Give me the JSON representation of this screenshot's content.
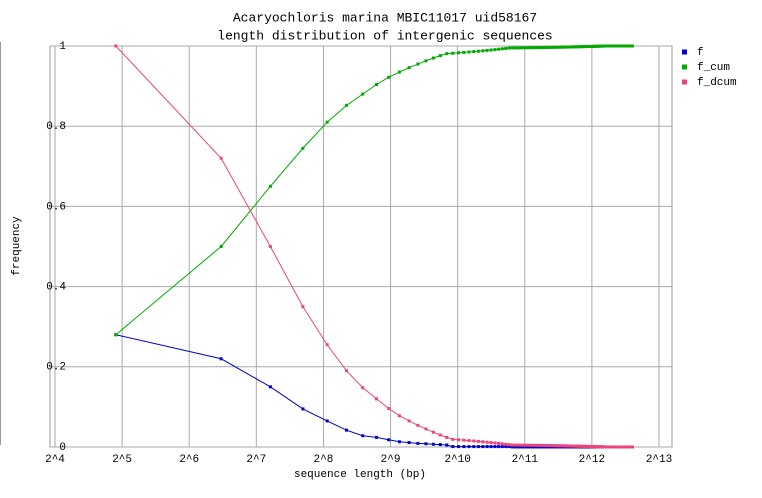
{
  "chart_data": {
    "type": "line",
    "title": "Acaryochloris marina MBIC11017 uid58167",
    "subtitle": "length distribution of intergenic sequences",
    "x_label": "sequence length (bp)",
    "y_label": "frequency",
    "xscale": "log2",
    "grid": true,
    "legend": "right",
    "xlim": [
      16,
      8192
    ],
    "ylim": [
      0,
      1
    ],
    "xticks": [
      {
        "value": 16,
        "label": "2^4"
      },
      {
        "value": 32,
        "label": "2^5"
      },
      {
        "value": 64,
        "label": "2^6"
      },
      {
        "value": 128,
        "label": "2^7"
      },
      {
        "value": 256,
        "label": "2^8"
      },
      {
        "value": 512,
        "label": "2^9"
      },
      {
        "value": 1024,
        "label": "2^10"
      },
      {
        "value": 2048,
        "label": "2^11"
      },
      {
        "value": 4096,
        "label": "2^12"
      },
      {
        "value": 8192,
        "label": "2^13"
      }
    ],
    "yticks": [
      0,
      0.2,
      0.4,
      0.6,
      0.8,
      1
    ],
    "x": [
      30,
      89,
      148,
      207,
      266,
      325,
      384,
      443,
      502,
      561,
      620,
      679,
      738,
      797,
      856,
      915,
      974,
      1033,
      1092,
      1151,
      1210,
      1269,
      1328,
      1387,
      1446,
      1505,
      1564,
      1623,
      1682,
      1741,
      1800,
      1859,
      1918,
      1977,
      2036,
      2095,
      2154,
      2213,
      2272,
      2331,
      2390,
      2449,
      2508,
      2567,
      2626,
      2685,
      2744,
      2803,
      2862,
      2921,
      2980,
      3039,
      3098,
      3157,
      3216,
      3275,
      3334,
      3393,
      3452,
      3511,
      3570,
      3629,
      3688,
      3747,
      3806,
      3865,
      3924,
      3983,
      4042,
      4101,
      4160,
      4219,
      4278,
      4337,
      4396,
      4455,
      4514,
      4573,
      4632,
      4691,
      4750,
      4809,
      4868,
      4927,
      4986,
      5045,
      5104,
      5163,
      5222,
      5281,
      5340,
      5399,
      5458,
      5517,
      5576,
      5635,
      5694,
      5753,
      5812,
      5871,
      5930,
      5989,
      6048,
      6107,
      6166,
      6225
    ],
    "series": [
      {
        "name": "f",
        "color": "#0000cc",
        "values": [
          0.28,
          0.22,
          0.15,
          0.095,
          0.065,
          0.042,
          0.028,
          0.024,
          0.018,
          0.013,
          0.011,
          0.009,
          0.008,
          0.007,
          0.006,
          0.005,
          0.001,
          0.001,
          0.001,
          0.001,
          0.001,
          0.001,
          0.001,
          0.001,
          0.001,
          0.001,
          0.001,
          0.001,
          0.001,
          0.001,
          0.0001,
          0.0001,
          0.0001,
          0.0001,
          0.0001,
          0.0001,
          0.0001,
          0.0001,
          0.0001,
          0.0001,
          0.0001,
          0.0001,
          0.0001,
          0.0001,
          0.0001,
          0.0001,
          0.0001,
          0.0001,
          0.0001,
          0.0001,
          0.0001,
          0.0001,
          0.0001,
          0.0001,
          0.0001,
          0.0001,
          0.0001,
          0.0001,
          0.0001,
          0.0001,
          0.0001,
          0.0001,
          0.0001,
          0.0001,
          0.0001,
          0.0001,
          0.0001,
          0.0001,
          0.0001,
          0.0001,
          0.0001,
          0.0001,
          0.0001,
          0.0001,
          0.0001,
          0.0001,
          0.0001,
          0.0001,
          0.0001,
          0.0001,
          0,
          0,
          0,
          0,
          0,
          0,
          0,
          0,
          0,
          0,
          0,
          0,
          0,
          0,
          0,
          0,
          0,
          0,
          0,
          0,
          0,
          0,
          0,
          0,
          0,
          0
        ]
      },
      {
        "name": "f_cum",
        "color": "#00aa00",
        "values": [
          0.28,
          0.5,
          0.65,
          0.745,
          0.81,
          0.852,
          0.88,
          0.904,
          0.922,
          0.935,
          0.946,
          0.955,
          0.963,
          0.97,
          0.976,
          0.981,
          0.982,
          0.983,
          0.984,
          0.985,
          0.986,
          0.987,
          0.988,
          0.989,
          0.99,
          0.991,
          0.992,
          0.993,
          0.994,
          0.995,
          0.9951,
          0.9952,
          0.9953,
          0.9954,
          0.9955,
          0.9956,
          0.9957,
          0.9958,
          0.9959,
          0.996,
          0.9961,
          0.9962,
          0.9963,
          0.9964,
          0.9965,
          0.9966,
          0.9967,
          0.9968,
          0.9969,
          0.997,
          0.9971,
          0.9972,
          0.9973,
          0.9974,
          0.9975,
          0.9976,
          0.9977,
          0.9978,
          0.9979,
          0.998,
          0.9981,
          0.9982,
          0.9983,
          0.9984,
          0.9985,
          0.9986,
          0.9987,
          0.9988,
          0.9989,
          0.999,
          0.9991,
          0.9992,
          0.9993,
          0.9994,
          0.9995,
          0.9996,
          0.9997,
          0.9998,
          0.9999,
          1,
          1,
          1,
          1,
          1,
          1,
          1,
          1,
          1,
          1,
          1,
          1,
          1,
          1,
          1,
          1,
          1,
          1,
          1,
          1,
          1,
          1,
          1,
          1,
          1,
          1,
          1
        ]
      },
      {
        "name": "f_dcum",
        "color": "#ee4477",
        "values": [
          1,
          0.72,
          0.5,
          0.35,
          0.255,
          0.19,
          0.148,
          0.12,
          0.096,
          0.078,
          0.065,
          0.054,
          0.045,
          0.037,
          0.03,
          0.024,
          0.019,
          0.018,
          0.017,
          0.016,
          0.015,
          0.014,
          0.013,
          0.012,
          0.011,
          0.01,
          0.009,
          0.008,
          0.007,
          0.006,
          0.005,
          0.0049,
          0.0048,
          0.0047,
          0.0046,
          0.0045,
          0.0044,
          0.0043,
          0.0042,
          0.0041,
          0.004,
          0.0039,
          0.0038,
          0.0037,
          0.0036,
          0.0035,
          0.0034,
          0.0033,
          0.0032,
          0.0031,
          0.003,
          0.0029,
          0.0028,
          0.0027,
          0.0026,
          0.0025,
          0.0024,
          0.0023,
          0.0022,
          0.0021,
          0.002,
          0.0019,
          0.0018,
          0.0017,
          0.0016,
          0.0015,
          0.0014,
          0.0013,
          0.0012,
          0.0011,
          0.001,
          0.0009,
          0.0008,
          0.0007,
          0.0006,
          0.0005,
          0.0004,
          0.0003,
          0.0002,
          0.0001,
          0,
          0,
          0,
          0,
          0,
          0,
          0,
          0,
          0,
          0,
          0,
          0,
          0,
          0,
          0,
          0,
          0,
          0,
          0,
          0,
          0,
          0,
          0,
          0,
          0,
          0
        ]
      }
    ]
  }
}
